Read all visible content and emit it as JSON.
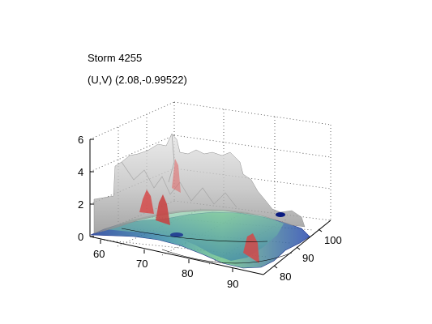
{
  "figure": {
    "title": "Storm 4255",
    "subtitle": "(U,V) (2.08,-0.99522)"
  },
  "chart_data": {
    "type": "surface3d",
    "title": "Storm 4255",
    "subtitle": "(U,V) (2.08,-0.99522)",
    "xlim": [
      57,
      95
    ],
    "ylim": [
      77,
      103
    ],
    "zlim": [
      0,
      6.5
    ],
    "x_ticks": [
      "60",
      "70",
      "80",
      "90"
    ],
    "y_ticks": [
      "80",
      "90",
      "100"
    ],
    "z_ticks": [
      "0",
      "2",
      "4",
      "6"
    ],
    "grid": true,
    "layers": [
      {
        "name": "",
        "color": "#9a9a9a",
        "peaks": [
          {
            "x": 66,
            "y": 94,
            "z": 3.9
          },
          {
            "x": 72,
            "y": 96,
            "z": 5.1
          },
          {
            "x": 75,
            "y": 94,
            "z": 5.8
          },
          {
            "x": 80,
            "y": 97,
            "z": 4.9
          },
          {
            "x": 84,
            "y": 95,
            "z": 4.6
          },
          {
            "x": 88,
            "y": 92,
            "z": 3.6
          },
          {
            "x": 90,
            "y": 88,
            "z": 3.1
          },
          {
            "x": 62,
            "y": 98,
            "z": 2.4
          }
        ]
      },
      {
        "name": "",
        "color": "#d64a4a",
        "peaks": [
          {
            "x": 71,
            "y": 93,
            "z": 2.2
          },
          {
            "x": 74,
            "y": 92,
            "z": 2.6
          },
          {
            "x": 77,
            "y": 95,
            "z": 1.8
          },
          {
            "x": 86,
            "y": 86,
            "z": 1.9
          }
        ]
      },
      {
        "name": "",
        "color": "#3a5fb5",
        "extent": {
          "xmin": 59,
          "xmax": 94,
          "ymin": 79,
          "ymax": 101
        },
        "level": 0.4
      }
    ]
  }
}
